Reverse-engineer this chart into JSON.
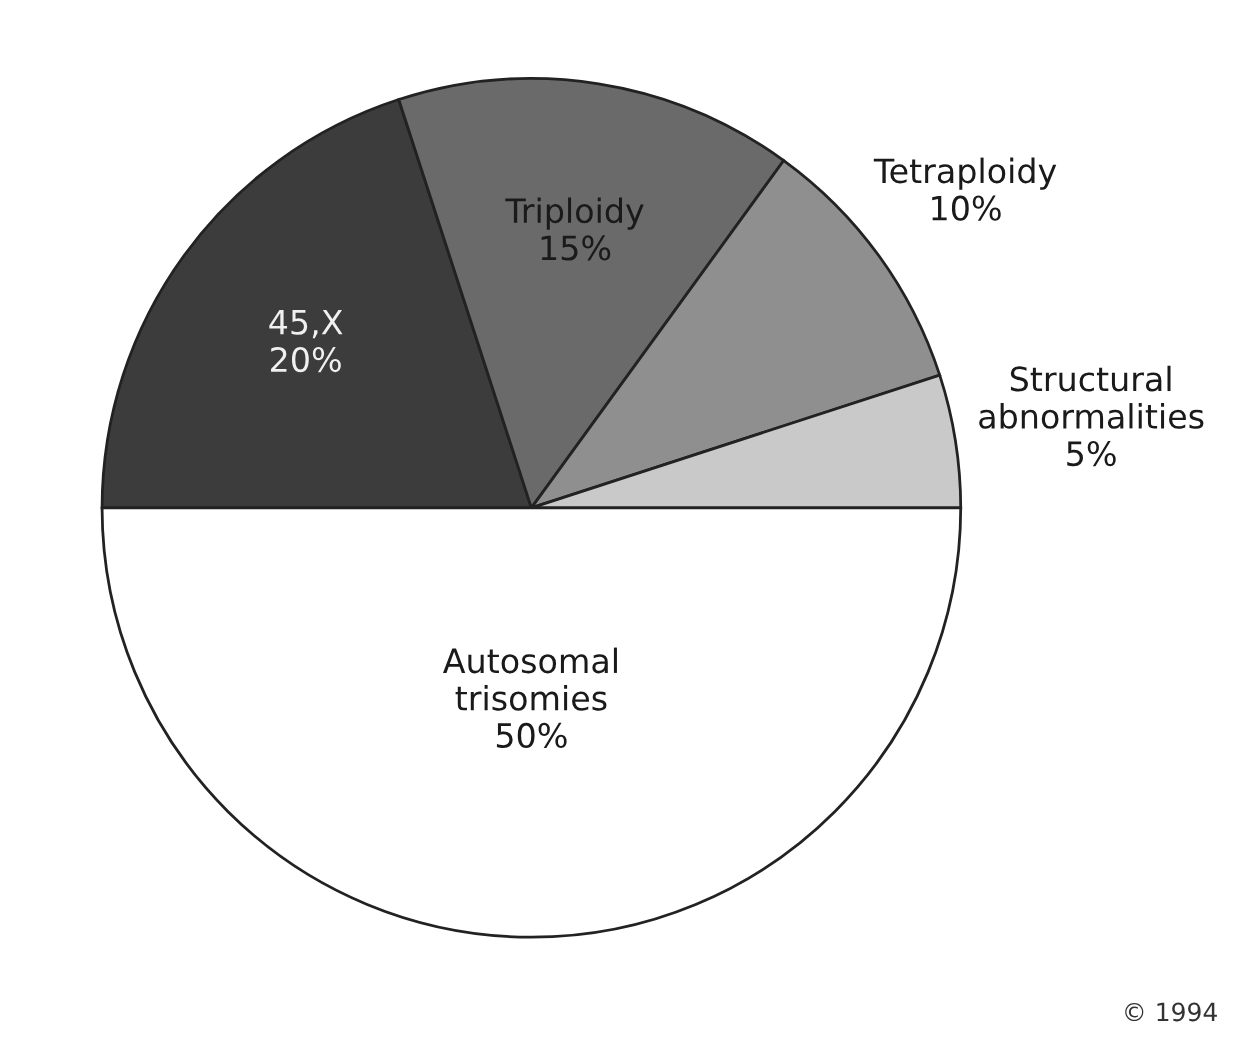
{
  "chart_data": {
    "type": "pie",
    "categories": [
      "45,X",
      "Triploidy",
      "Tetraploidy",
      "Structural abnormalities",
      "Autosomal trisomies"
    ],
    "values": [
      20,
      15,
      10,
      5,
      50
    ],
    "value_labels": [
      "20%",
      "15%",
      "10%",
      "5%",
      "50%"
    ],
    "colors": [
      "#3c3c3c",
      "#6a6a6a",
      "#8f8f8f",
      "#c9c9c9",
      "#ffffff"
    ],
    "annotations": [
      "© 1994"
    ]
  }
}
